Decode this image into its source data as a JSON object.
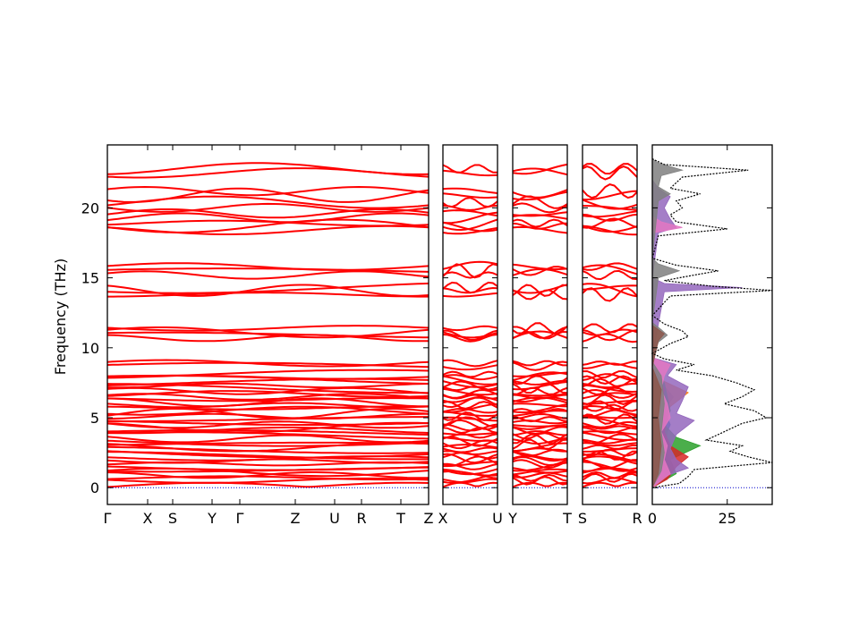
{
  "chart_data": {
    "type": "line",
    "title": "",
    "ylabel": "Frequency (THz)",
    "ylim": [
      -1.2,
      24.5
    ],
    "y_ticks": [
      0,
      5,
      10,
      15,
      20
    ],
    "band_color": "#ff0000",
    "zero_line_color": "#0000cc",
    "band_levels_thz": [
      0.3,
      0.5,
      0.7,
      0.9,
      1.1,
      1.3,
      1.5,
      1.7,
      1.9,
      2.1,
      2.3,
      2.5,
      2.7,
      2.9,
      3.1,
      3.3,
      3.5,
      3.7,
      3.9,
      4.1,
      4.3,
      4.5,
      4.7,
      4.9,
      5.1,
      5.3,
      5.5,
      5.7,
      5.9,
      6.1,
      6.3,
      6.5,
      6.7,
      6.9,
      7.1,
      7.3,
      7.5,
      7.7,
      7.9,
      8.1,
      8.7,
      8.9,
      10.7,
      10.9,
      11.1,
      11.4,
      13.8,
      14.1,
      14.3,
      15.2,
      15.5,
      15.8,
      18.4,
      18.7,
      18.9,
      19.3,
      19.6,
      20.0,
      20.4,
      20.9,
      21.2,
      22.5,
      22.8
    ],
    "panels": [
      {
        "labels": [
          "Γ",
          "X",
          "S",
          "Y",
          "Γ",
          "Z",
          "U",
          "R",
          "T",
          "Z"
        ]
      },
      {
        "labels": [
          "X",
          "U"
        ]
      },
      {
        "labels": [
          "Y",
          "T"
        ]
      },
      {
        "labels": [
          "S",
          "R"
        ]
      }
    ],
    "dos": {
      "type": "area",
      "xlim": [
        0,
        40
      ],
      "x_ticks": [
        0,
        25
      ],
      "total_color": "#000000",
      "total": [
        [
          0,
          0
        ],
        [
          0.3,
          9
        ],
        [
          0.8,
          12
        ],
        [
          1.3,
          14
        ],
        [
          1.8,
          40
        ],
        [
          2.2,
          32
        ],
        [
          2.6,
          26
        ],
        [
          3.0,
          30
        ],
        [
          3.4,
          18
        ],
        [
          3.8,
          22
        ],
        [
          4.2,
          26
        ],
        [
          4.6,
          30
        ],
        [
          5.0,
          38
        ],
        [
          5.5,
          34
        ],
        [
          6.0,
          24
        ],
        [
          6.5,
          30
        ],
        [
          7.0,
          34
        ],
        [
          7.5,
          28
        ],
        [
          8.0,
          20
        ],
        [
          8.4,
          8
        ],
        [
          8.8,
          14
        ],
        [
          9.2,
          4
        ],
        [
          9.6,
          0
        ],
        [
          10.3,
          6
        ],
        [
          10.8,
          12
        ],
        [
          11.2,
          10
        ],
        [
          11.7,
          4
        ],
        [
          12.3,
          0
        ],
        [
          13.7,
          6
        ],
        [
          14.1,
          40
        ],
        [
          14.4,
          20
        ],
        [
          14.8,
          4
        ],
        [
          15.2,
          14
        ],
        [
          15.5,
          22
        ],
        [
          15.9,
          8
        ],
        [
          16.4,
          0
        ],
        [
          18.0,
          2
        ],
        [
          18.5,
          25
        ],
        [
          19.0,
          8
        ],
        [
          19.5,
          6
        ],
        [
          20.0,
          10
        ],
        [
          20.5,
          8
        ],
        [
          21.0,
          16
        ],
        [
          21.4,
          6
        ],
        [
          22.2,
          10
        ],
        [
          22.7,
          32
        ],
        [
          23.1,
          4
        ],
        [
          23.5,
          0
        ]
      ],
      "projections": [
        {
          "color": "#1f77b4",
          "points": [
            [
              0,
              0
            ],
            [
              0.5,
              4
            ],
            [
              1.5,
              6
            ],
            [
              2.5,
              5
            ],
            [
              3.5,
              4
            ],
            [
              4.5,
              6
            ],
            [
              5.5,
              4
            ],
            [
              6.5,
              7
            ],
            [
              7.5,
              3
            ],
            [
              8.5,
              0
            ]
          ]
        },
        {
          "color": "#ff7f0e",
          "points": [
            [
              0,
              0
            ],
            [
              0.8,
              6
            ],
            [
              1.8,
              4
            ],
            [
              2.8,
              3
            ],
            [
              3.8,
              5
            ],
            [
              4.8,
              4
            ],
            [
              5.8,
              6
            ],
            [
              6.8,
              12
            ],
            [
              7.6,
              4
            ],
            [
              8.5,
              0
            ]
          ]
        },
        {
          "color": "#2ca02c",
          "points": [
            [
              0,
              0
            ],
            [
              1.0,
              8
            ],
            [
              2.0,
              6
            ],
            [
              3.0,
              16
            ],
            [
              3.6,
              8
            ],
            [
              4.5,
              4
            ],
            [
              5.5,
              6
            ],
            [
              6.5,
              5
            ],
            [
              7.5,
              4
            ],
            [
              8.5,
              0
            ]
          ]
        },
        {
          "color": "#d62728",
          "points": [
            [
              0,
              0
            ],
            [
              0.6,
              5
            ],
            [
              1.5,
              8
            ],
            [
              2.2,
              12
            ],
            [
              3.0,
              6
            ],
            [
              4.0,
              4
            ],
            [
              5.0,
              5
            ],
            [
              6.0,
              3
            ],
            [
              7.0,
              4
            ],
            [
              8.0,
              2
            ],
            [
              8.6,
              0
            ]
          ]
        },
        {
          "color": "#9467bd",
          "points": [
            [
              0,
              0
            ],
            [
              0.8,
              4
            ],
            [
              1.4,
              12
            ],
            [
              2.0,
              8
            ],
            [
              2.8,
              6
            ],
            [
              3.8,
              8
            ],
            [
              4.8,
              14
            ],
            [
              5.3,
              8
            ],
            [
              6.2,
              10
            ],
            [
              7.2,
              12
            ],
            [
              8.0,
              5
            ],
            [
              8.8,
              8
            ],
            [
              9.3,
              0
            ],
            [
              14.0,
              4
            ],
            [
              14.3,
              30
            ],
            [
              14.6,
              4
            ],
            [
              15.0,
              0
            ],
            [
              18.2,
              2
            ],
            [
              18.6,
              8
            ],
            [
              19.2,
              6
            ],
            [
              20.0,
              4
            ],
            [
              20.8,
              6
            ],
            [
              21.4,
              2
            ],
            [
              22.0,
              0
            ]
          ]
        },
        {
          "color": "#e377c2",
          "points": [
            [
              0,
              0
            ],
            [
              1.0,
              6
            ],
            [
              2.0,
              4
            ],
            [
              3.0,
              5
            ],
            [
              4.0,
              3
            ],
            [
              5.0,
              6
            ],
            [
              6.0,
              5
            ],
            [
              7.0,
              3
            ],
            [
              8.0,
              4
            ],
            [
              8.8,
              6
            ],
            [
              9.3,
              0
            ],
            [
              18.2,
              0
            ],
            [
              18.6,
              10
            ],
            [
              19.0,
              3
            ],
            [
              19.4,
              0
            ]
          ]
        },
        {
          "color": "#7f7f7f",
          "points": [
            [
              0,
              0
            ],
            [
              1.2,
              3
            ],
            [
              2.5,
              4
            ],
            [
              4.0,
              3
            ],
            [
              6.0,
              4
            ],
            [
              8.0,
              3
            ],
            [
              9.0,
              0
            ],
            [
              10.4,
              2
            ],
            [
              10.9,
              5
            ],
            [
              11.3,
              3
            ],
            [
              11.8,
              0
            ],
            [
              15.0,
              2
            ],
            [
              15.5,
              9
            ],
            [
              16.0,
              2
            ],
            [
              16.4,
              0
            ],
            [
              20.5,
              2
            ],
            [
              21.0,
              6
            ],
            [
              21.5,
              2
            ],
            [
              22.3,
              3
            ],
            [
              22.7,
              10
            ],
            [
              23.2,
              2
            ],
            [
              23.5,
              0
            ]
          ]
        },
        {
          "color": "#8c564b",
          "points": [
            [
              0,
              0
            ],
            [
              1.0,
              2
            ],
            [
              3.0,
              3
            ],
            [
              5.0,
              2
            ],
            [
              7.0,
              3
            ],
            [
              8.6,
              0
            ],
            [
              10.5,
              2
            ],
            [
              11.0,
              4
            ],
            [
              11.6,
              0
            ]
          ]
        }
      ]
    }
  }
}
